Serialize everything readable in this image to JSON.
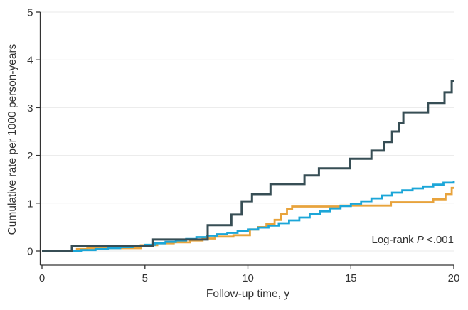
{
  "chart_data": {
    "type": "line",
    "step": true,
    "title": "",
    "xlabel": "Follow-up time, y",
    "ylabel": "Cumulative rate per 1000 person-years",
    "annotation": "Log-rank P <.001",
    "annotation_parts": {
      "prefix": "Log-rank ",
      "italic": "P",
      "suffix": " <.001"
    },
    "xlim": [
      0,
      20
    ],
    "ylim": [
      0,
      5
    ],
    "xticks": [
      0,
      5,
      10,
      15,
      20
    ],
    "xtick_labels": [
      "0",
      "5",
      "10",
      "15",
      "20"
    ],
    "yticks": [
      0,
      1,
      2,
      3,
      4,
      5
    ],
    "ytick_labels": [
      "0",
      "1",
      "2",
      "3",
      "4",
      "5"
    ],
    "grid": "horizontal",
    "legend": "none",
    "colors": {
      "axis": "#333333",
      "grid": "#E9E9E9",
      "text": "#333333",
      "background": "#FFFFFF"
    },
    "series": [
      {
        "name": "series-orange",
        "color": "#E8A33C",
        "width": 2.8,
        "points": [
          [
            0,
            0
          ],
          [
            1.7,
            0.04
          ],
          [
            2.2,
            0.06
          ],
          [
            4.8,
            0.12
          ],
          [
            5.6,
            0.16
          ],
          [
            6.4,
            0.18
          ],
          [
            7.2,
            0.22
          ],
          [
            7.8,
            0.26
          ],
          [
            8.4,
            0.3
          ],
          [
            9.3,
            0.33
          ],
          [
            10.1,
            0.45
          ],
          [
            10.5,
            0.5
          ],
          [
            10.9,
            0.56
          ],
          [
            11.3,
            0.65
          ],
          [
            11.6,
            0.78
          ],
          [
            11.9,
            0.88
          ],
          [
            12.15,
            0.93
          ],
          [
            14.5,
            0.95
          ],
          [
            16.95,
            1.02
          ],
          [
            19.0,
            1.08
          ],
          [
            19.6,
            1.19
          ],
          [
            19.9,
            1.32
          ]
        ]
      },
      {
        "name": "series-blue",
        "color": "#1CA6D8",
        "width": 2.8,
        "points": [
          [
            0,
            0
          ],
          [
            1.9,
            0.02
          ],
          [
            2.6,
            0.04
          ],
          [
            3.2,
            0.06
          ],
          [
            3.8,
            0.08
          ],
          [
            4.4,
            0.1
          ],
          [
            5.0,
            0.13
          ],
          [
            5.5,
            0.16
          ],
          [
            6.0,
            0.19
          ],
          [
            6.5,
            0.22
          ],
          [
            7.0,
            0.25
          ],
          [
            7.5,
            0.29
          ],
          [
            8.0,
            0.32
          ],
          [
            8.5,
            0.35
          ],
          [
            9.0,
            0.38
          ],
          [
            9.5,
            0.41
          ],
          [
            10.0,
            0.45
          ],
          [
            10.5,
            0.49
          ],
          [
            11.0,
            0.53
          ],
          [
            11.5,
            0.58
          ],
          [
            12.0,
            0.64
          ],
          [
            12.5,
            0.7
          ],
          [
            13.0,
            0.77
          ],
          [
            13.5,
            0.83
          ],
          [
            14.0,
            0.89
          ],
          [
            14.5,
            0.94
          ],
          [
            15.0,
            0.99
          ],
          [
            15.5,
            1.04
          ],
          [
            16.0,
            1.1
          ],
          [
            16.5,
            1.16
          ],
          [
            17.0,
            1.22
          ],
          [
            17.5,
            1.27
          ],
          [
            18.0,
            1.31
          ],
          [
            18.5,
            1.35
          ],
          [
            19.0,
            1.39
          ],
          [
            19.5,
            1.43
          ],
          [
            20,
            1.46
          ]
        ]
      },
      {
        "name": "series-dark-slate",
        "color": "#374E55",
        "width": 3,
        "points": [
          [
            0,
            0
          ],
          [
            1.45,
            0.1
          ],
          [
            5.4,
            0.24
          ],
          [
            8.05,
            0.54
          ],
          [
            9.2,
            0.76
          ],
          [
            9.7,
            1.04
          ],
          [
            10.2,
            1.19
          ],
          [
            11.1,
            1.4
          ],
          [
            12.75,
            1.58
          ],
          [
            13.45,
            1.73
          ],
          [
            14.95,
            1.93
          ],
          [
            16.0,
            2.1
          ],
          [
            16.6,
            2.28
          ],
          [
            17.0,
            2.5
          ],
          [
            17.35,
            2.68
          ],
          [
            17.55,
            2.9
          ],
          [
            18.75,
            3.1
          ],
          [
            19.55,
            3.32
          ],
          [
            19.9,
            3.56
          ]
        ]
      }
    ]
  }
}
